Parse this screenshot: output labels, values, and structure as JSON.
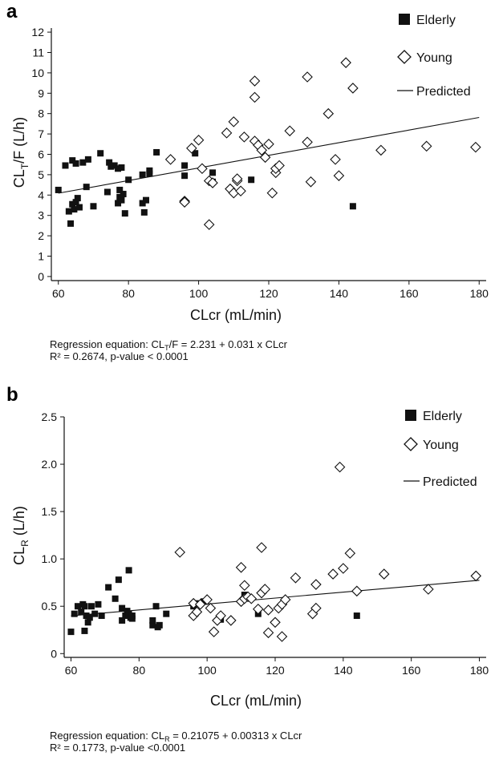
{
  "chart_data": [
    {
      "panel": "a",
      "type": "scatter",
      "xlabel": "CLcr (mL/min)",
      "ylabel_main": "CL",
      "ylabel_sub": "T",
      "ylabel_rest": "/F (L/h)",
      "xlim": [
        58,
        182
      ],
      "ylim": [
        -0.2,
        12.2
      ],
      "xticks": [
        60,
        80,
        100,
        120,
        140,
        160,
        180
      ],
      "yticks": [
        0,
        1,
        2,
        3,
        4,
        5,
        6,
        7,
        8,
        9,
        10,
        11,
        12
      ],
      "legend": [
        "Elderly",
        "Young",
        "Predicted"
      ],
      "series": [
        {
          "name": "Elderly",
          "marker": "filled-square",
          "points": [
            [
              60,
              4.25
            ],
            [
              62,
              5.45
            ],
            [
              63,
              3.2
            ],
            [
              63.5,
              2.6
            ],
            [
              64,
              5.7
            ],
            [
              64,
              3.55
            ],
            [
              64.5,
              3.3
            ],
            [
              65,
              5.55
            ],
            [
              65,
              3.65
            ],
            [
              65.5,
              3.85
            ],
            [
              66,
              3.4
            ],
            [
              67,
              5.6
            ],
            [
              68,
              4.4
            ],
            [
              68.5,
              5.75
            ],
            [
              70,
              3.45
            ],
            [
              72,
              6.05
            ],
            [
              74,
              4.15
            ],
            [
              74.5,
              5.6
            ],
            [
              75,
              5.4
            ],
            [
              76,
              5.45
            ],
            [
              77,
              5.3
            ],
            [
              77,
              3.6
            ],
            [
              77.5,
              4.25
            ],
            [
              77.5,
              3.9
            ],
            [
              78,
              3.75
            ],
            [
              78,
              5.35
            ],
            [
              78.5,
              4.05
            ],
            [
              79,
              3.1
            ],
            [
              80,
              4.75
            ],
            [
              84,
              3.6
            ],
            [
              84,
              5.0
            ],
            [
              84.5,
              3.15
            ],
            [
              85,
              3.75
            ],
            [
              86,
              5.05
            ],
            [
              86,
              5.2
            ],
            [
              88,
              6.1
            ],
            [
              96,
              5.45
            ],
            [
              96,
              4.95
            ],
            [
              99,
              6.05
            ],
            [
              104,
              5.1
            ],
            [
              104,
              4.65
            ],
            [
              115,
              4.75
            ],
            [
              144,
              3.45
            ]
          ]
        },
        {
          "name": "Young",
          "marker": "open-diamond",
          "points": [
            [
              92,
              5.75
            ],
            [
              96,
              3.7
            ],
            [
              96,
              3.65
            ],
            [
              98,
              6.3
            ],
            [
              100,
              6.7
            ],
            [
              101,
              5.3
            ],
            [
              103,
              2.55
            ],
            [
              103,
              4.7
            ],
            [
              104,
              4.6
            ],
            [
              108,
              7.05
            ],
            [
              109,
              4.3
            ],
            [
              110,
              4.1
            ],
            [
              110,
              7.6
            ],
            [
              111,
              4.7
            ],
            [
              111,
              4.8
            ],
            [
              112,
              4.2
            ],
            [
              113,
              6.85
            ],
            [
              116,
              6.65
            ],
            [
              116,
              8.8
            ],
            [
              116,
              9.6
            ],
            [
              117,
              6.45
            ],
            [
              118,
              6.2
            ],
            [
              119,
              5.85
            ],
            [
              120,
              6.5
            ],
            [
              121,
              4.1
            ],
            [
              122,
              5.1
            ],
            [
              122,
              5.3
            ],
            [
              123,
              5.45
            ],
            [
              126,
              7.15
            ],
            [
              131,
              9.8
            ],
            [
              131,
              6.6
            ],
            [
              132,
              4.65
            ],
            [
              137,
              8.0
            ],
            [
              139,
              5.75
            ],
            [
              140,
              4.95
            ],
            [
              142,
              10.5
            ],
            [
              144,
              9.25
            ],
            [
              152,
              6.2
            ],
            [
              165,
              6.4
            ],
            [
              179,
              6.35
            ]
          ]
        }
      ],
      "regression": {
        "intercept": 2.231,
        "slope": 0.031,
        "x_range": [
          60,
          180
        ]
      },
      "caption_line1_a": "Regression equation: CL",
      "caption_line1_sub": "T",
      "caption_line1_b": "/F = 2.231 + 0.031 x CLcr",
      "caption_line2": "R² = 0.2674, p-value < 0.0001"
    },
    {
      "panel": "b",
      "type": "scatter",
      "xlabel": "CLcr (mL/min)",
      "ylabel_main": "CL",
      "ylabel_sub": "R",
      "ylabel_rest": " (L/h)",
      "xlim": [
        58,
        182
      ],
      "ylim": [
        -0.04,
        2.5
      ],
      "xticks": [
        60,
        80,
        100,
        120,
        140,
        160,
        180
      ],
      "yticks": [
        0,
        0.5,
        1.0,
        1.5,
        2.0,
        2.5
      ],
      "ytick_labels": [
        "0",
        "0.5",
        "1.0",
        "1.5",
        "2.0",
        "2.5"
      ],
      "legend": [
        "Elderly",
        "Young",
        "Predicted"
      ],
      "series": [
        {
          "name": "Elderly",
          "marker": "filled-square",
          "points": [
            [
              60,
              0.23
            ],
            [
              61,
              0.42
            ],
            [
              62,
              0.5
            ],
            [
              63,
              0.44
            ],
            [
              63.5,
              0.52
            ],
            [
              64,
              0.24
            ],
            [
              64,
              0.5
            ],
            [
              64.5,
              0.4
            ],
            [
              65,
              0.33
            ],
            [
              65.5,
              0.38
            ],
            [
              66,
              0.5
            ],
            [
              67,
              0.42
            ],
            [
              68,
              0.52
            ],
            [
              69,
              0.4
            ],
            [
              71,
              0.7
            ],
            [
              73,
              0.58
            ],
            [
              74,
              0.78
            ],
            [
              75,
              0.48
            ],
            [
              75,
              0.35
            ],
            [
              76,
              0.4
            ],
            [
              76.5,
              0.45
            ],
            [
              77,
              0.88
            ],
            [
              77,
              0.42
            ],
            [
              77.5,
              0.38
            ],
            [
              78,
              0.37
            ],
            [
              78,
              0.4
            ],
            [
              84,
              0.3
            ],
            [
              84,
              0.35
            ],
            [
              85,
              0.5
            ],
            [
              85.5,
              0.28
            ],
            [
              86,
              0.3
            ],
            [
              88,
              0.42
            ],
            [
              96,
              0.5
            ],
            [
              97,
              0.53
            ],
            [
              99,
              0.55
            ],
            [
              104,
              0.36
            ],
            [
              111,
              0.62
            ],
            [
              115,
              0.42
            ],
            [
              144,
              0.4
            ]
          ]
        },
        {
          "name": "Young",
          "marker": "open-diamond",
          "points": [
            [
              92,
              1.07
            ],
            [
              96,
              0.53
            ],
            [
              96,
              0.4
            ],
            [
              97,
              0.44
            ],
            [
              98,
              0.52
            ],
            [
              100,
              0.57
            ],
            [
              101,
              0.48
            ],
            [
              102,
              0.23
            ],
            [
              103,
              0.35
            ],
            [
              104,
              0.4
            ],
            [
              107,
              0.35
            ],
            [
              110,
              0.55
            ],
            [
              110,
              0.91
            ],
            [
              111,
              0.58
            ],
            [
              111,
              0.72
            ],
            [
              112,
              0.6
            ],
            [
              113,
              0.58
            ],
            [
              115,
              0.47
            ],
            [
              116,
              1.12
            ],
            [
              116,
              0.64
            ],
            [
              117,
              0.68
            ],
            [
              118,
              0.22
            ],
            [
              118,
              0.46
            ],
            [
              120,
              0.33
            ],
            [
              121,
              0.48
            ],
            [
              122,
              0.52
            ],
            [
              122,
              0.18
            ],
            [
              123,
              0.57
            ],
            [
              126,
              0.8
            ],
            [
              131,
              0.42
            ],
            [
              132,
              0.48
            ],
            [
              132,
              0.73
            ],
            [
              137,
              0.84
            ],
            [
              139,
              1.97
            ],
            [
              140,
              0.9
            ],
            [
              142,
              1.06
            ],
            [
              144,
              0.66
            ],
            [
              152,
              0.84
            ],
            [
              165,
              0.68
            ],
            [
              179,
              0.82
            ]
          ]
        }
      ],
      "regression": {
        "intercept": 0.21075,
        "slope": 0.00313,
        "x_range": [
          60,
          180
        ]
      },
      "caption_line1_a": "Regression equation: CL",
      "caption_line1_sub": "R",
      "caption_line1_b": " = 0.21075 + 0.00313 x CLcr",
      "caption_line2": "R² = 0.1773, p-value <0.0001"
    }
  ]
}
